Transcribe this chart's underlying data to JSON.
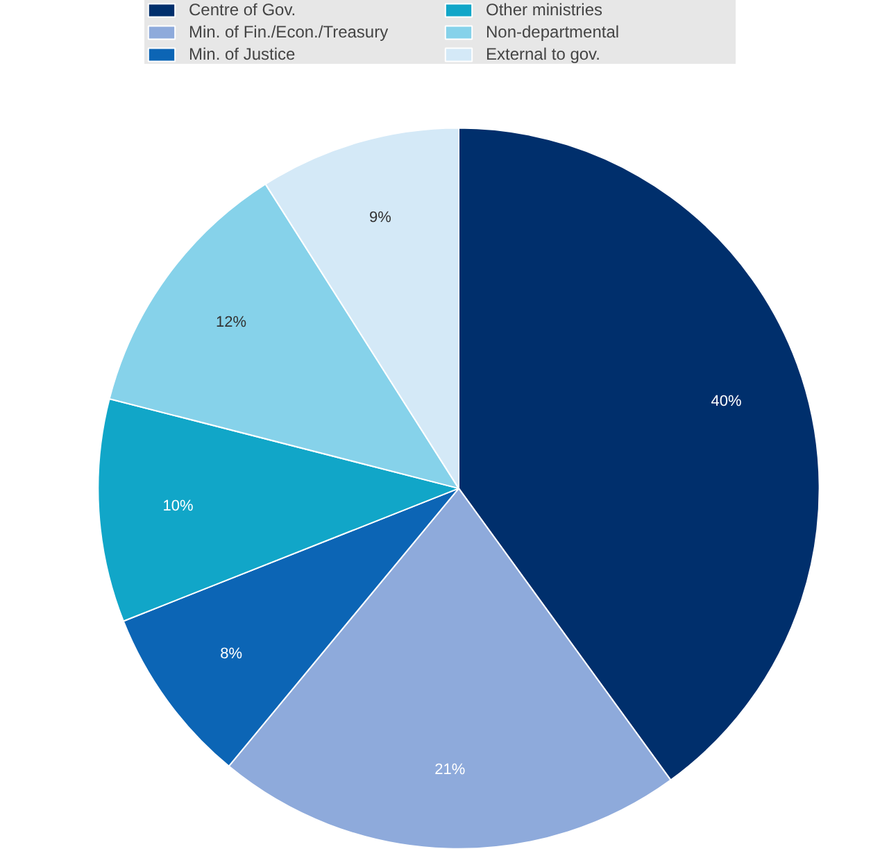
{
  "chart_data": {
    "type": "pie",
    "categories": [
      "Centre of Gov.",
      "Min. of Fin./Econ./Treasury",
      "Min. of Justice",
      "Other ministries",
      "Non-departmental",
      "External to gov."
    ],
    "values": [
      40,
      21,
      8,
      10,
      12,
      9
    ],
    "colors": [
      "#002f6c",
      "#8eaadb",
      "#0c65b5",
      "#11a6c8",
      "#86d2ea",
      "#d4e9f7"
    ],
    "value_labels": [
      "40%",
      "21%",
      "8%",
      "10%",
      "12%",
      "9%"
    ],
    "legend": "top"
  }
}
